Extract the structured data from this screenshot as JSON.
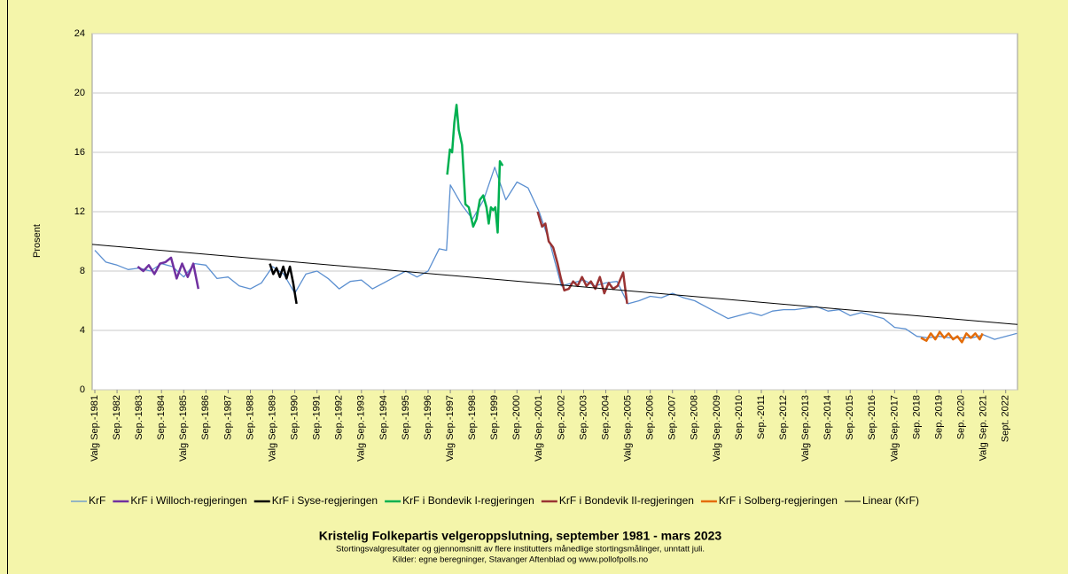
{
  "chart_data": {
    "type": "line",
    "title": "Kristelig Folkepartis velgeroppslutning, september 1981 - mars 2023",
    "subtitle": [
      "Stortingsvalgresultater og gjennomsnitt av flere institutters månedlige stortingsmålinger, unntatt juli.",
      "Kilder: egne beregninger, Stavanger Aftenblad og www.pollofpolls.no"
    ],
    "ylabel": "Prosent",
    "xlim": [
      1981.55,
      2023.2
    ],
    "ylim": [
      0,
      24
    ],
    "yticks": [
      0,
      4,
      8,
      12,
      16,
      20,
      24
    ],
    "grid": true,
    "xticks": [
      {
        "value": 1981.67,
        "label": "Valg Sep.-1981"
      },
      {
        "value": 1982.67,
        "label": "Sep.-1982"
      },
      {
        "value": 1983.67,
        "label": "Sep.-1983"
      },
      {
        "value": 1984.67,
        "label": "Sep.-1984"
      },
      {
        "value": 1985.67,
        "label": "Valg Sep.-1985"
      },
      {
        "value": 1986.67,
        "label": "Sep.-1986"
      },
      {
        "value": 1987.67,
        "label": "Sep.-1987"
      },
      {
        "value": 1988.67,
        "label": "Sep.-1988"
      },
      {
        "value": 1989.67,
        "label": "Valg Sep.-1989"
      },
      {
        "value": 1990.67,
        "label": "Sep.-1990"
      },
      {
        "value": 1991.67,
        "label": "Sep.-1991"
      },
      {
        "value": 1992.67,
        "label": "Sep.-1992"
      },
      {
        "value": 1993.67,
        "label": "Valg Sep.-1993"
      },
      {
        "value": 1994.67,
        "label": "Sep.-1994"
      },
      {
        "value": 1995.67,
        "label": "Sep.-1995"
      },
      {
        "value": 1996.67,
        "label": "Sep.-1996"
      },
      {
        "value": 1997.67,
        "label": "Valg Sep.-1997"
      },
      {
        "value": 1998.67,
        "label": "Sep.-1998"
      },
      {
        "value": 1999.67,
        "label": "Sep.-1999"
      },
      {
        "value": 2000.67,
        "label": "Sep.-2000"
      },
      {
        "value": 2001.67,
        "label": "Valg Sep.-2001"
      },
      {
        "value": 2002.67,
        "label": "Sep.-2002"
      },
      {
        "value": 2003.67,
        "label": "Sep.-2003"
      },
      {
        "value": 2004.67,
        "label": "Sep.-2004"
      },
      {
        "value": 2005.67,
        "label": "Valg Sep.-2005"
      },
      {
        "value": 2006.67,
        "label": "Sep.-2006"
      },
      {
        "value": 2007.67,
        "label": "Sep.-2007"
      },
      {
        "value": 2008.67,
        "label": "Sep.-2008"
      },
      {
        "value": 2009.67,
        "label": "Valg Sep.-2009"
      },
      {
        "value": 2010.67,
        "label": "Sep.-2010"
      },
      {
        "value": 2011.67,
        "label": "Sep.-2011"
      },
      {
        "value": 2012.67,
        "label": "Sep.-2012"
      },
      {
        "value": 2013.67,
        "label": "Valg Sep.-2013"
      },
      {
        "value": 2014.67,
        "label": "Sep.-2014"
      },
      {
        "value": 2015.67,
        "label": "Sep.-2015"
      },
      {
        "value": 2016.67,
        "label": "Sep.-2016"
      },
      {
        "value": 2017.67,
        "label": "Valg Sep.-2017"
      },
      {
        "value": 2018.67,
        "label": "Sep. 2018"
      },
      {
        "value": 2019.67,
        "label": "Sep. 2019"
      },
      {
        "value": 2020.67,
        "label": "Sep. 2020"
      },
      {
        "value": 2021.67,
        "label": "Valg Sep. 2021"
      },
      {
        "value": 2022.67,
        "label": "Sept. 2022"
      }
    ],
    "series": [
      {
        "name": "KrF",
        "color": "#5b8fd0",
        "width": 1.3,
        "x": [
          1981.67,
          1982.17,
          1982.67,
          1983.17,
          1983.67,
          1984.17,
          1984.67,
          1985.17,
          1985.67,
          1986.17,
          1986.67,
          1987.17,
          1987.67,
          1988.17,
          1988.67,
          1989.17,
          1989.67,
          1990.17,
          1990.67,
          1991.17,
          1991.67,
          1992.17,
          1992.67,
          1993.17,
          1993.67,
          1994.17,
          1994.67,
          1995.17,
          1995.67,
          1996.17,
          1996.67,
          1997.17,
          1997.5,
          1997.67,
          1998.17,
          1998.67,
          1999.17,
          1999.67,
          2000.17,
          2000.67,
          2001.17,
          2001.67,
          2002.17,
          2002.67,
          2003.17,
          2003.67,
          2004.17,
          2004.67,
          2005.17,
          2005.67,
          2006.17,
          2006.67,
          2007.17,
          2007.67,
          2008.17,
          2008.67,
          2009.17,
          2009.67,
          2010.17,
          2010.67,
          2011.17,
          2011.67,
          2012.17,
          2012.67,
          2013.17,
          2013.67,
          2014.17,
          2014.67,
          2015.17,
          2015.67,
          2016.17,
          2016.67,
          2017.17,
          2017.67,
          2018.17,
          2018.67,
          2019.17,
          2019.67,
          2020.17,
          2020.67,
          2021.17,
          2021.67,
          2022.17,
          2022.67,
          2023.17
        ],
        "values": [
          9.4,
          8.6,
          8.4,
          8.1,
          8.2,
          8.0,
          8.5,
          8.3,
          7.6,
          8.5,
          8.4,
          7.5,
          7.6,
          7.0,
          6.8,
          7.2,
          8.3,
          7.8,
          6.5,
          7.8,
          8.0,
          7.5,
          6.8,
          7.3,
          7.4,
          6.8,
          7.2,
          7.6,
          8.0,
          7.6,
          8.0,
          9.5,
          9.4,
          13.8,
          12.5,
          11.5,
          12.8,
          15.0,
          12.8,
          14.0,
          13.6,
          12.0,
          9.8,
          7.0,
          7.2,
          7.4,
          7.0,
          7.2,
          7.3,
          5.8,
          6.0,
          6.3,
          6.2,
          6.5,
          6.2,
          6.0,
          5.6,
          5.2,
          4.8,
          5.0,
          5.2,
          5.0,
          5.3,
          5.4,
          5.4,
          5.5,
          5.6,
          5.3,
          5.4,
          5.0,
          5.2,
          5.0,
          4.8,
          4.2,
          4.1,
          3.6,
          3.5,
          3.6,
          3.5,
          3.5,
          3.5,
          3.7,
          3.4,
          3.6,
          3.8
        ]
      },
      {
        "name": "KrF i Willoch-regjeringen",
        "color": "#7030a0",
        "width": 2.5,
        "x": [
          1983.6,
          1983.85,
          1984.1,
          1984.35,
          1984.6,
          1984.85,
          1985.1,
          1985.35,
          1985.6,
          1985.85,
          1986.1,
          1986.33
        ],
        "values": [
          8.3,
          8.0,
          8.4,
          7.8,
          8.5,
          8.6,
          8.9,
          7.5,
          8.5,
          7.6,
          8.5,
          6.8
        ]
      },
      {
        "name": "KrF i Syse-regjeringen",
        "color": "#000000",
        "width": 2.5,
        "x": [
          1989.55,
          1989.7,
          1989.85,
          1990.0,
          1990.15,
          1990.3,
          1990.45,
          1990.6,
          1990.75
        ],
        "values": [
          8.5,
          7.8,
          8.2,
          7.6,
          8.3,
          7.5,
          8.3,
          7.2,
          5.8
        ]
      },
      {
        "name": "KrF i Bondevik I-regjeringen",
        "color": "#00b050",
        "width": 2.5,
        "x": [
          1997.53,
          1997.65,
          1997.75,
          1997.85,
          1997.95,
          1998.05,
          1998.2,
          1998.35,
          1998.5,
          1998.7,
          1998.85,
          1999.0,
          1999.15,
          1999.3,
          1999.4,
          1999.5,
          1999.6,
          1999.7,
          1999.8,
          1999.9,
          2000.03
        ],
        "values": [
          14.5,
          16.2,
          16.0,
          18.0,
          19.2,
          17.5,
          16.5,
          12.5,
          12.3,
          11.0,
          11.5,
          12.8,
          13.1,
          12.3,
          11.2,
          12.3,
          12.1,
          12.3,
          10.6,
          15.4,
          15.1
        ]
      },
      {
        "name": "KrF i Bondevik II-regjeringen",
        "color": "#993333",
        "width": 2.5,
        "x": [
          2001.6,
          2001.8,
          2001.95,
          2002.1,
          2002.3,
          2002.5,
          2002.65,
          2002.8,
          2003.0,
          2003.2,
          2003.4,
          2003.6,
          2003.8,
          2004.0,
          2004.2,
          2004.4,
          2004.6,
          2004.8,
          2005.0,
          2005.2,
          2005.45,
          2005.63
        ],
        "values": [
          12.0,
          11.0,
          11.2,
          10.0,
          9.6,
          8.5,
          7.5,
          6.7,
          6.8,
          7.3,
          7.0,
          7.6,
          7.0,
          7.3,
          6.8,
          7.6,
          6.5,
          7.2,
          6.8,
          7.0,
          7.9,
          5.8
        ]
      },
      {
        "name": "KrF i Solberg-regjeringen",
        "color": "#e36c0a",
        "width": 2.5,
        "x": [
          2018.85,
          2019.1,
          2019.3,
          2019.5,
          2019.7,
          2019.9,
          2020.1,
          2020.3,
          2020.5,
          2020.7,
          2020.9,
          2021.1,
          2021.3,
          2021.5,
          2021.63
        ],
        "values": [
          3.5,
          3.3,
          3.8,
          3.4,
          3.9,
          3.5,
          3.8,
          3.4,
          3.6,
          3.2,
          3.8,
          3.5,
          3.8,
          3.4,
          3.8
        ]
      },
      {
        "name": "Linear (KrF)",
        "color": "#000000",
        "width": 1,
        "x": [
          1981.55,
          2023.2
        ],
        "values": [
          9.8,
          4.4
        ]
      }
    ]
  }
}
